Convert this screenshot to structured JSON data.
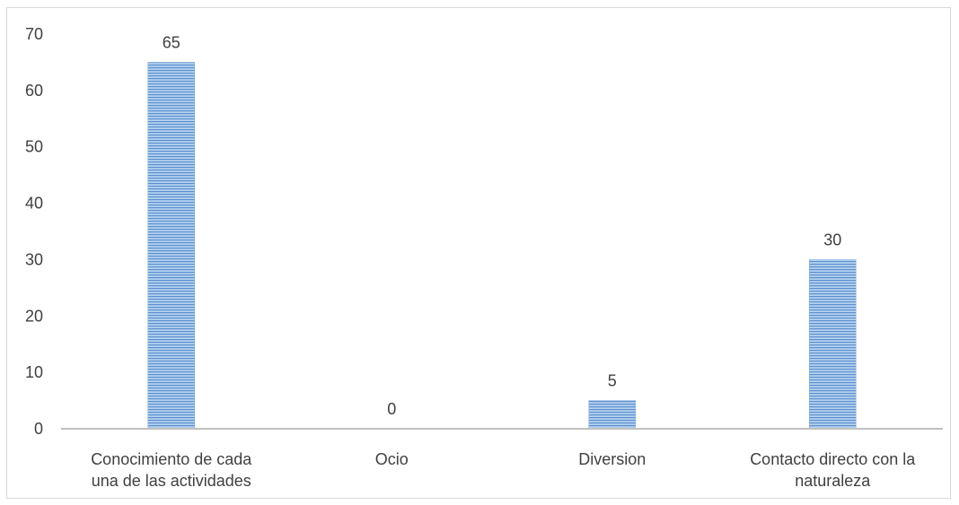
{
  "chart_data": {
    "type": "bar",
    "categories": [
      [
        "Conocimiento de cada",
        "una de las actividades"
      ],
      [
        "Ocio"
      ],
      [
        "Diversion"
      ],
      [
        "Contacto directo con la",
        "naturaleza"
      ]
    ],
    "values": [
      65,
      0,
      5,
      30
    ],
    "ylim": [
      0,
      70
    ],
    "yticks": [
      0,
      10,
      20,
      30,
      40,
      50,
      60,
      70
    ],
    "data_labels": true,
    "grid": false,
    "legend": "none",
    "bar_color": "#9dc3e6",
    "bar_stripe_color": "#4a7ebb",
    "axis_color": "#bfbfbf",
    "text_color": "#404040"
  }
}
